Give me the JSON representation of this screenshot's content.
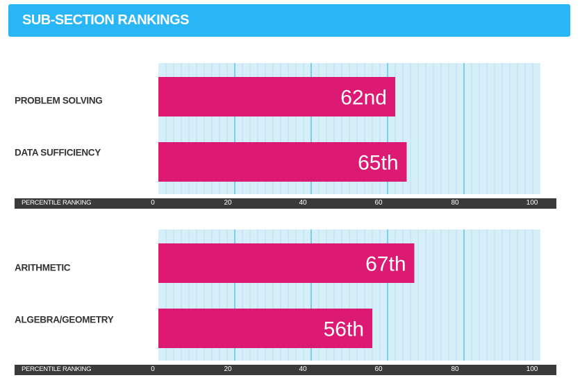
{
  "header": {
    "title": "SUB-SECTION RANKINGS",
    "bg_color": "#29b6f6"
  },
  "colors": {
    "bar": "#dc1a73",
    "plot_bg": "#d6eef8",
    "minor_grid": "#b7e0f2",
    "major_grid": "#1fb3d4",
    "axis_bar": "#3a3a3a"
  },
  "chart_data": [
    {
      "type": "bar",
      "orientation": "horizontal",
      "categories": [
        "PROBLEM SOLVING",
        "DATA SUFFICIENCY"
      ],
      "values": [
        62,
        65
      ],
      "bar_labels": [
        "62nd",
        "65th"
      ],
      "xlabel": "PERCENTILE RANKING",
      "xlim": [
        0,
        100
      ],
      "xticks": [
        "0",
        "20",
        "40",
        "60",
        "80",
        "100"
      ],
      "grid": true
    },
    {
      "type": "bar",
      "orientation": "horizontal",
      "categories": [
        "ARITHMETIC",
        "ALGEBRA/GEOMETRY"
      ],
      "values": [
        67,
        56
      ],
      "bar_labels": [
        "67th",
        "56th"
      ],
      "xlabel": "PERCENTILE RANKING",
      "xlim": [
        0,
        100
      ],
      "xticks": [
        "0",
        "20",
        "40",
        "60",
        "80",
        "100"
      ],
      "grid": true
    }
  ]
}
